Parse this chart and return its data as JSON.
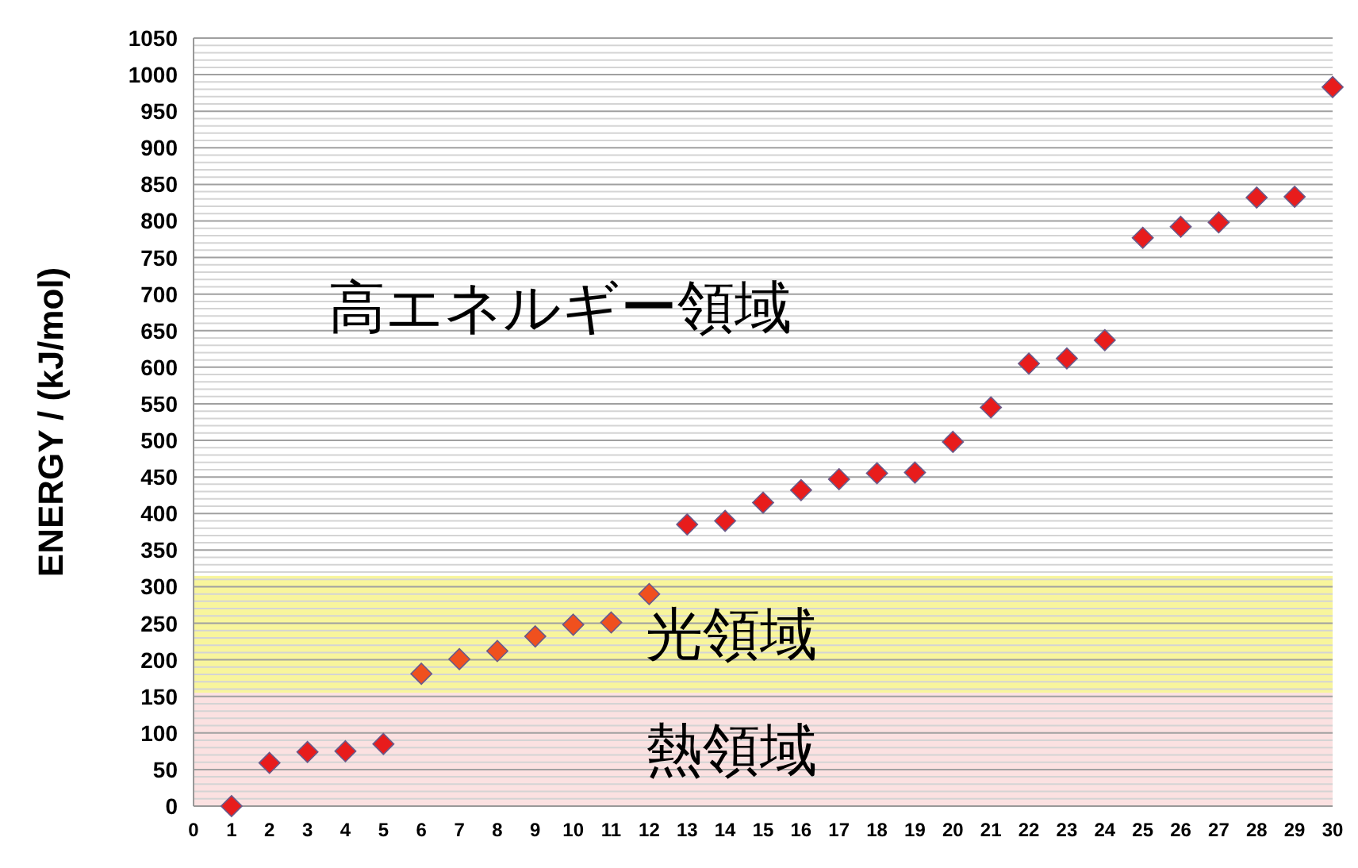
{
  "chart_data": {
    "type": "scatter",
    "ylabel": "ENERGY / (kJ/mol)",
    "x": [
      1,
      2,
      3,
      4,
      5,
      6,
      7,
      8,
      9,
      10,
      11,
      12,
      13,
      14,
      15,
      16,
      17,
      18,
      19,
      20,
      21,
      22,
      23,
      24,
      25,
      26,
      27,
      28,
      29,
      30
    ],
    "series": [
      {
        "values": [
          0,
          59,
          74,
          75,
          85,
          181,
          201,
          212,
          232,
          248,
          251,
          290,
          385,
          390,
          415,
          432,
          447,
          455,
          456,
          498,
          545,
          605,
          612,
          637,
          777,
          792,
          798,
          832,
          833,
          983
        ],
        "colors": [
          "#e81c1c",
          "#e81c1c",
          "#e81c1c",
          "#e81c1c",
          "#e81c1c",
          "#f0501e",
          "#f0501e",
          "#f0501e",
          "#f0501e",
          "#f0501e",
          "#f0501e",
          "#f0501e",
          "#e81c1c",
          "#e81c1c",
          "#e81c1c",
          "#e81c1c",
          "#e81c1c",
          "#e81c1c",
          "#e81c1c",
          "#e81c1c",
          "#e81c1c",
          "#e81c1c",
          "#e81c1c",
          "#e81c1c",
          "#e81c1c",
          "#e81c1c",
          "#e81c1c",
          "#e81c1c",
          "#e81c1c",
          "#e81c1c"
        ]
      }
    ],
    "marker": "diamond",
    "xlim": [
      0,
      30
    ],
    "xticks": [
      0,
      1,
      2,
      3,
      4,
      5,
      6,
      7,
      8,
      9,
      10,
      11,
      12,
      13,
      14,
      15,
      16,
      17,
      18,
      19,
      20,
      21,
      22,
      23,
      24,
      25,
      26,
      27,
      28,
      29,
      30
    ],
    "ylim": [
      0,
      1050
    ],
    "yticks": [
      0,
      50,
      100,
      150,
      200,
      250,
      300,
      350,
      400,
      450,
      500,
      550,
      600,
      650,
      700,
      750,
      800,
      850,
      900,
      950,
      1000,
      1050
    ],
    "grid": "y",
    "bands": [
      {
        "axis": "y",
        "from": 0,
        "to": 155,
        "label": "熱領域",
        "color": "#fbe1e1"
      },
      {
        "axis": "y",
        "from": 155,
        "to": 315,
        "label": "光領域",
        "color": "#f8f59c"
      },
      {
        "axis": "y",
        "from": 315,
        "to": 1050,
        "label": "高エネルギー領域",
        "color": "#ffffff"
      }
    ]
  }
}
